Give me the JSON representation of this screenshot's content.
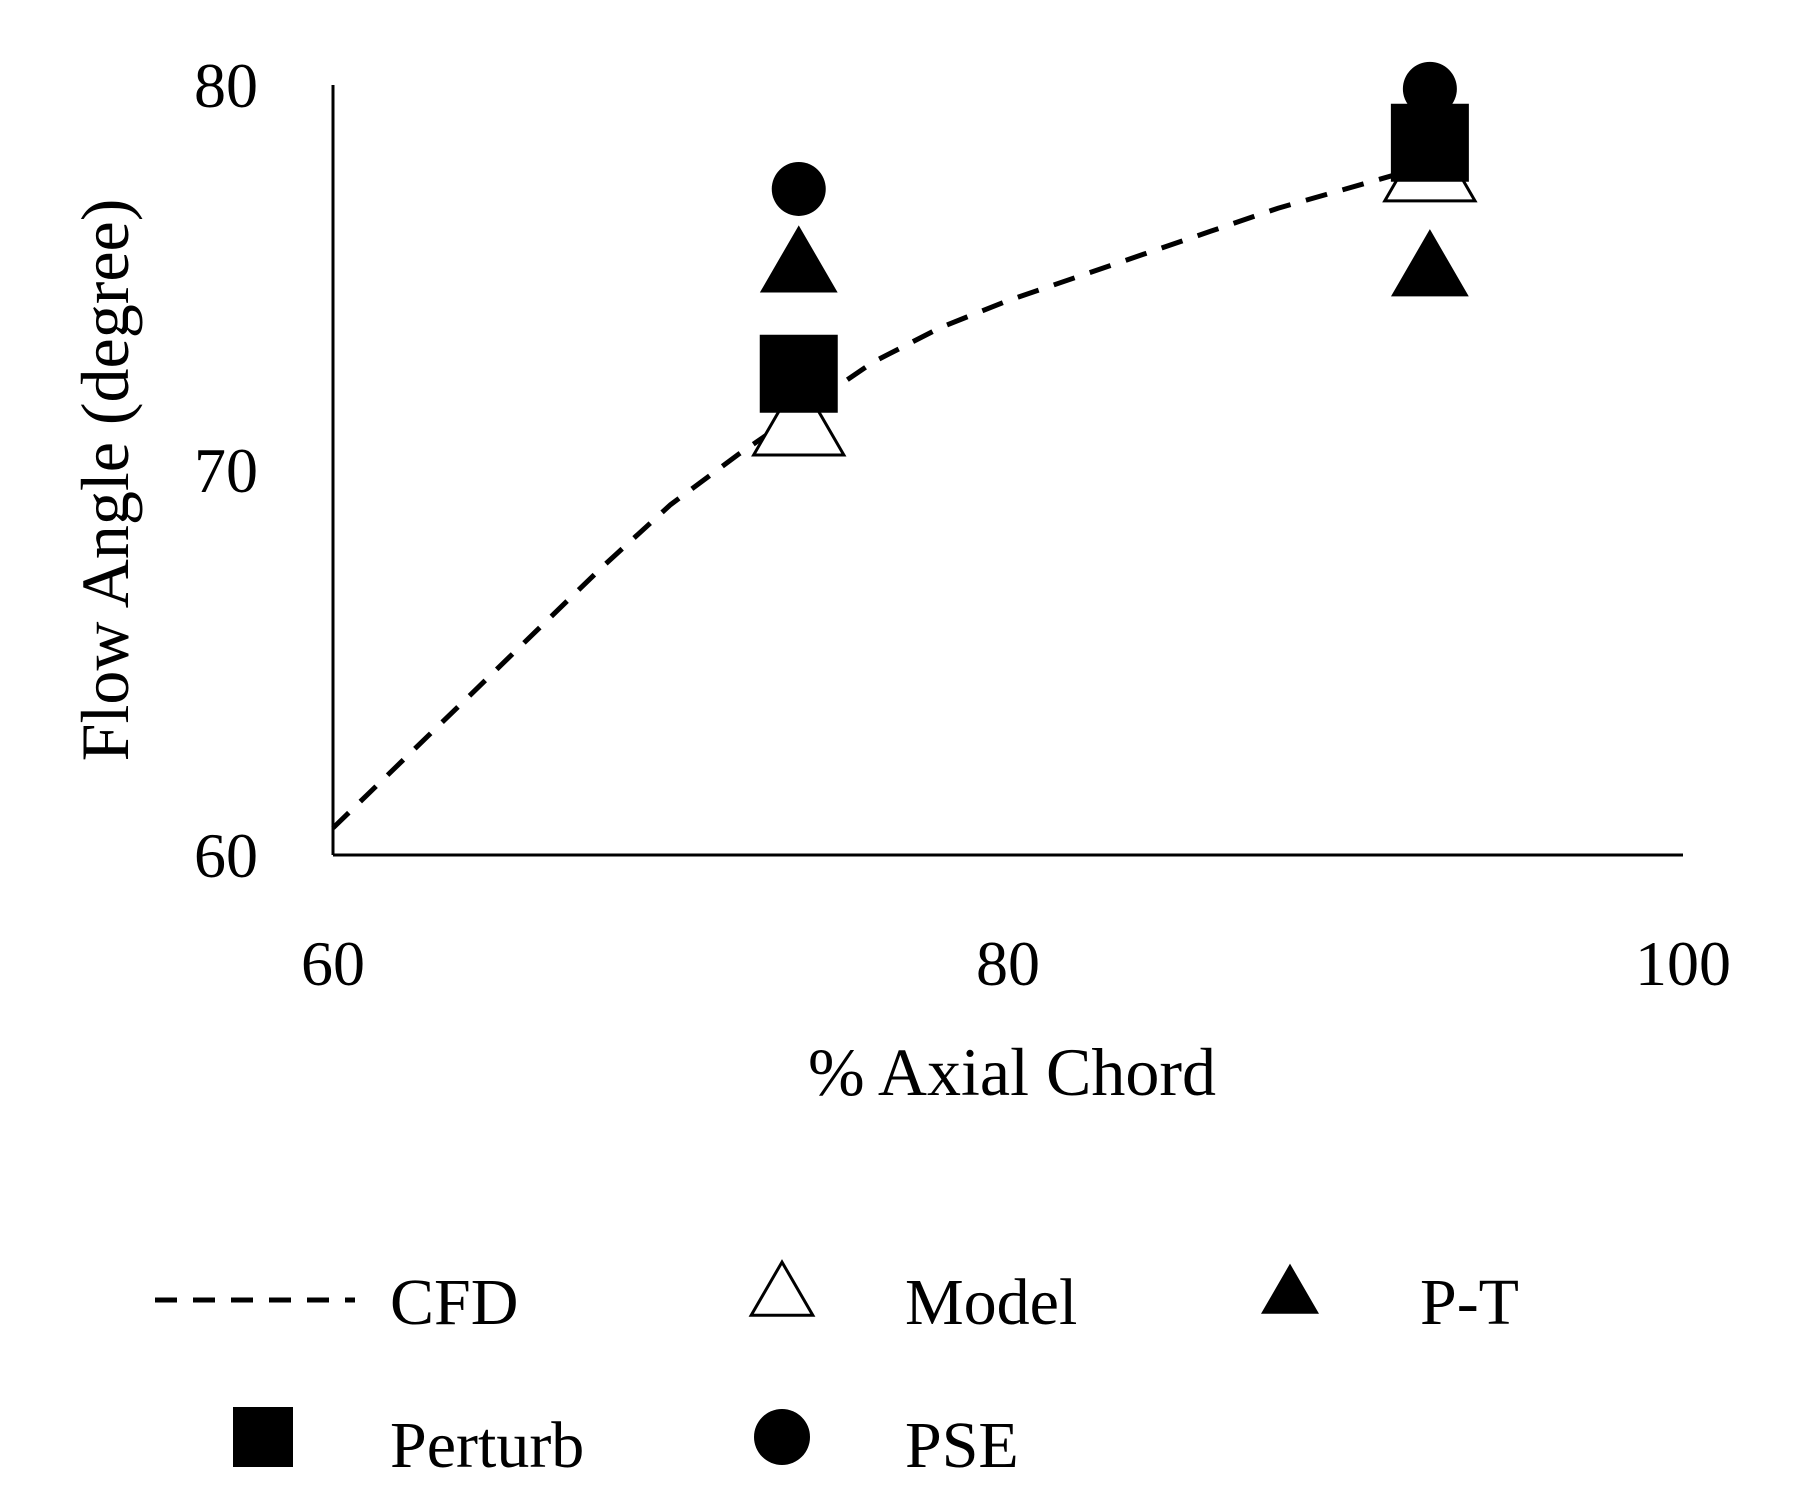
{
  "chart_data": {
    "type": "scatter",
    "title": "",
    "xlabel": "% Axial Chord",
    "ylabel": "Flow Angle (degree)",
    "xlim": [
      60,
      100
    ],
    "ylim": [
      60,
      80
    ],
    "xticks": [
      60,
      80,
      100
    ],
    "yticks": [
      60,
      70,
      80
    ],
    "grid": false,
    "legend_position": "bottom",
    "series": [
      {
        "name": "CFD",
        "kind": "line",
        "style": "dashed",
        "x": [
          60,
          62,
          64,
          66,
          68,
          70,
          72,
          74,
          76,
          78,
          80,
          82,
          84,
          86,
          88,
          90,
          92,
          93.5
        ],
        "y": [
          60.7,
          62.4,
          64.1,
          65.8,
          67.5,
          69.1,
          70.4,
          71.6,
          72.8,
          73.7,
          74.4,
          75.0,
          75.6,
          76.2,
          76.8,
          77.3,
          77.8,
          78.1
        ]
      },
      {
        "name": "Model",
        "marker": "open-triangle",
        "x": [
          73.8,
          92.5
        ],
        "y": [
          71.2,
          77.8
        ]
      },
      {
        "name": "P-T",
        "marker": "filled-triangle",
        "x": [
          73.8,
          92.5
        ],
        "y": [
          75.3,
          75.2
        ]
      },
      {
        "name": "Perturb",
        "marker": "filled-square",
        "x": [
          73.8,
          92.5
        ],
        "y": [
          72.5,
          78.5
        ]
      },
      {
        "name": "PSE",
        "marker": "filled-circle",
        "x": [
          73.8,
          92.5
        ],
        "y": [
          77.3,
          79.9
        ]
      }
    ]
  }
}
